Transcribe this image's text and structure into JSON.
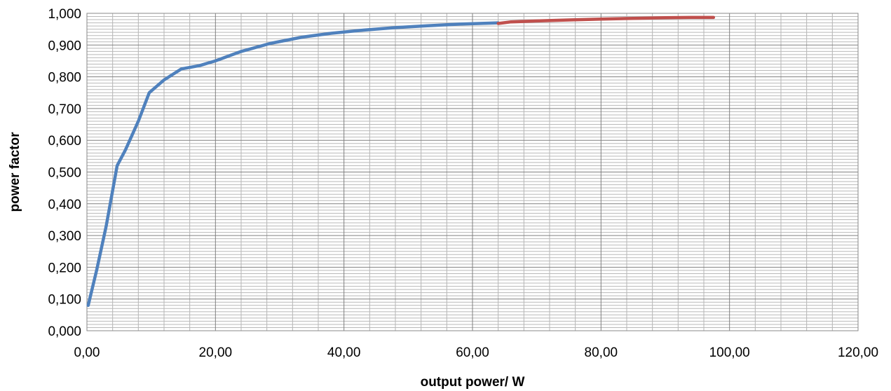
{
  "chart_data": {
    "type": "line",
    "title": "",
    "xlabel": "output power/ W",
    "ylabel": "power factor",
    "xlim": [
      0,
      120
    ],
    "ylim": [
      0,
      1
    ],
    "x_ticks": [
      "0,00",
      "20,00",
      "40,00",
      "60,00",
      "80,00",
      "100,00",
      "120,00"
    ],
    "y_ticks": [
      "0,000",
      "0,100",
      "0,200",
      "0,300",
      "0,400",
      "0,500",
      "0,600",
      "0,700",
      "0,800",
      "0,900",
      "1,000"
    ],
    "grid": true,
    "legend": "none",
    "series": [
      {
        "color": "#4f81bd",
        "points": [
          [
            0.2,
            0.08
          ],
          [
            1.5,
            0.19
          ],
          [
            3.0,
            0.33
          ],
          [
            4.7,
            0.52
          ],
          [
            6.0,
            0.57
          ],
          [
            8.0,
            0.66
          ],
          [
            9.7,
            0.75
          ],
          [
            12.0,
            0.79
          ],
          [
            14.7,
            0.825
          ],
          [
            17.5,
            0.835
          ],
          [
            20.0,
            0.85
          ],
          [
            24.0,
            0.88
          ],
          [
            28.5,
            0.905
          ],
          [
            33.5,
            0.925
          ],
          [
            38.0,
            0.937
          ],
          [
            43.0,
            0.947
          ],
          [
            48.0,
            0.955
          ],
          [
            53.0,
            0.961
          ],
          [
            58.0,
            0.966
          ],
          [
            64.0,
            0.97
          ]
        ]
      },
      {
        "color": "#c0504d",
        "points": [
          [
            64.0,
            0.968
          ],
          [
            66.0,
            0.973
          ],
          [
            70.0,
            0.976
          ],
          [
            75.0,
            0.979
          ],
          [
            80.0,
            0.982
          ],
          [
            85.0,
            0.984
          ],
          [
            90.0,
            0.986
          ],
          [
            94.0,
            0.987
          ],
          [
            97.5,
            0.987
          ]
        ]
      }
    ]
  }
}
